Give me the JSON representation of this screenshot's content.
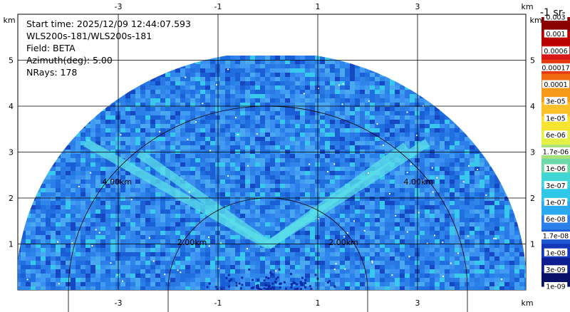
{
  "info": {
    "start_time": "Start time: 2025/12/09 12:44:07.593",
    "instrument": "WLS200s-181/WLS200s-181",
    "field": "Field: BETA",
    "azimuth": "Azimuth(deg): 5.00",
    "nrays": "NRays: 178"
  },
  "axes": {
    "unit": "km",
    "x_ticks": [
      "-3",
      "-1",
      "1",
      "3"
    ],
    "y_ticks": [
      "1",
      "2",
      "3",
      "4",
      "5"
    ]
  },
  "rings": [
    {
      "label": "2.00km"
    },
    {
      "label": "4.00km"
    }
  ],
  "colorbar": {
    "title": "-1 sr-",
    "labels": [
      "0.003",
      "0.001",
      "0.0006",
      "0.00017",
      "0.0001",
      "3e-05",
      "1e-05",
      "6e-06",
      "1.7e-06",
      "1e-06",
      "3e-07",
      "1e-07",
      "6e-08",
      "1.7e-08",
      "1e-08",
      "3e-09",
      "1e-09"
    ],
    "colors": [
      "#8b0000",
      "#b80000",
      "#d81818",
      "#e83a10",
      "#f06a10",
      "#f79a1a",
      "#fbc02a",
      "#f6e430",
      "#e6ef45",
      "#a8e07a",
      "#6cd9a8",
      "#40d6d6",
      "#30c8e8",
      "#2aa8f0",
      "#2a80e8",
      "#1e58d0",
      "#1436b8",
      "#0c1e90",
      "#061068"
    ]
  }
}
